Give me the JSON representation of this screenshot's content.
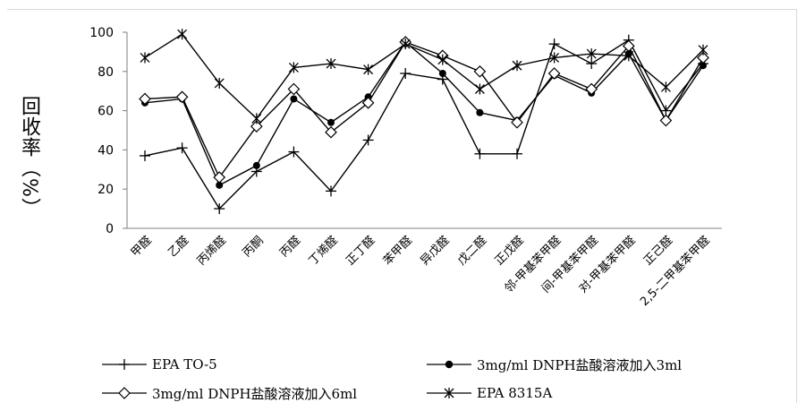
{
  "chart_data": {
    "type": "line",
    "ylabel": "回收率（%）",
    "ylim": [
      0,
      100
    ],
    "yticks": [
      0,
      20,
      40,
      60,
      80,
      100
    ],
    "grid": false,
    "legend_position": "bottom",
    "categories": [
      "甲醛",
      "乙醛",
      "丙烯醛",
      "丙酮",
      "丙醛",
      "丁烯醛",
      "正丁醛",
      "苯甲醛",
      "异戊醛",
      "戊二醛",
      "正戊醛",
      "邻-甲基苯甲醛",
      "间-甲基苯甲醛",
      "对-甲基苯甲醛",
      "正己醛",
      "2,5-二甲基苯甲醛"
    ],
    "series": [
      {
        "name": "EPA TO-5",
        "marker": "plus",
        "color": "#000000",
        "values": [
          37,
          41,
          10,
          29,
          39,
          19,
          45,
          79,
          76,
          38,
          38,
          94,
          84,
          96,
          60,
          84
        ]
      },
      {
        "name": "3mg/ml DNPH盐酸溶液加入3ml",
        "marker": "dot",
        "color": "#000000",
        "values": [
          64,
          66,
          22,
          32,
          66,
          54,
          67,
          95,
          79,
          59,
          55,
          78,
          69,
          89,
          55,
          83
        ]
      },
      {
        "name": "3mg/ml DNPH盐酸溶液加入6ml",
        "marker": "diamond",
        "color": "#000000",
        "values": [
          66,
          67,
          26,
          52,
          71,
          49,
          64,
          95,
          88,
          80,
          54,
          79,
          71,
          93,
          55,
          87
        ]
      },
      {
        "name": "EPA 8315A",
        "marker": "star",
        "color": "#000000",
        "values": [
          87,
          99,
          74,
          56,
          82,
          84,
          81,
          94,
          86,
          71,
          83,
          87,
          89,
          88,
          72,
          91
        ]
      }
    ]
  }
}
